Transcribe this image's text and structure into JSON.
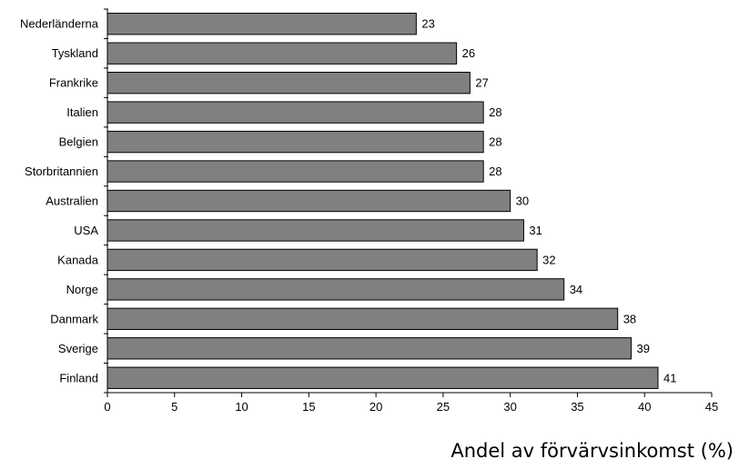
{
  "chart_data": {
    "type": "bar",
    "orientation": "horizontal",
    "categories": [
      "Nederländerna",
      "Tyskland",
      "Frankrike",
      "Italien",
      "Belgien",
      "Storbritannien",
      "Australien",
      "USA",
      "Kanada",
      "Norge",
      "Danmark",
      "Sverige",
      "Finland"
    ],
    "values": [
      23,
      26,
      27,
      28,
      28,
      28,
      30,
      31,
      32,
      34,
      38,
      39,
      41
    ],
    "title": "",
    "xlabel": "Andel av förvärvsinkomst (%)",
    "ylabel": "",
    "xlim": [
      0,
      45
    ],
    "xticks": [
      0,
      5,
      10,
      15,
      20,
      25,
      30,
      35,
      40,
      45
    ],
    "grid": false,
    "legend": "none",
    "data_labels": true,
    "bar_color": "#808080",
    "bar_edge_color": "#000000"
  }
}
